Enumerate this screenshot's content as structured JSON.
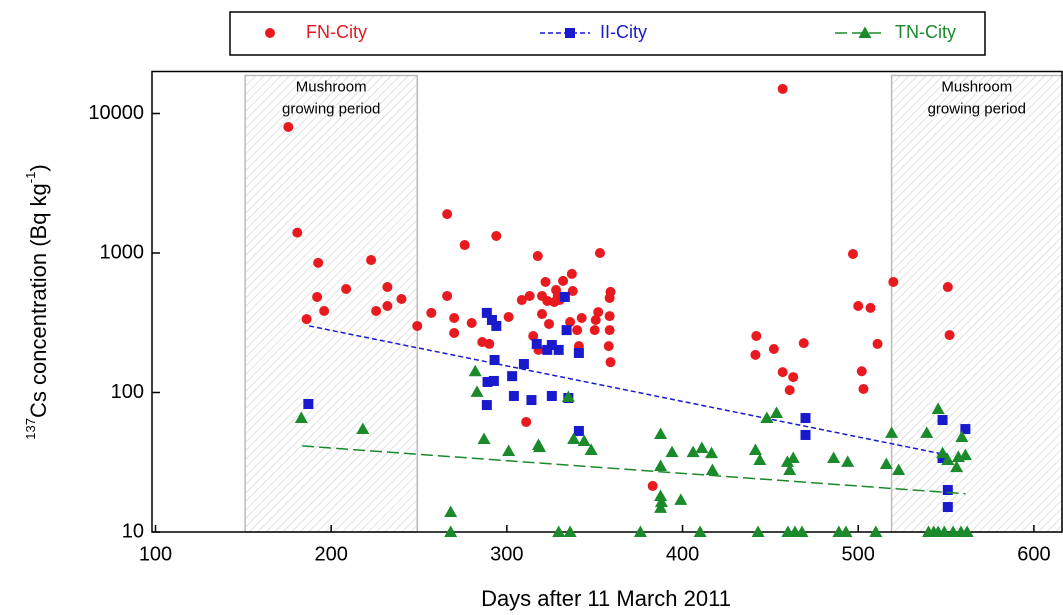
{
  "chart_data": {
    "type": "scatter",
    "x_label": "Days after 11 March 2011",
    "y_label": {
      "sup": "137",
      "text": "Cs concentration (Bq kg",
      "exp": "-1",
      "end": ")"
    },
    "xlim": [
      98,
      616
    ],
    "ylim": [
      10,
      20000
    ],
    "log_y": true,
    "xticks": [
      100,
      200,
      300,
      400,
      500,
      600
    ],
    "yticks": [
      10,
      100,
      1000,
      10000
    ],
    "regions": [
      {
        "x": [
          151,
          249
        ],
        "label": [
          "Mushroom",
          "growing period"
        ]
      },
      {
        "x": [
          519,
          616
        ],
        "label": [
          "Mushroom",
          "growing period"
        ]
      }
    ],
    "series": [
      {
        "name": "FN-City",
        "color": "#e8191f",
        "marker": "circle",
        "x": [
          175.6,
          180.7,
          186,
          192.6,
          192,
          196,
          208.5,
          222.7,
          225.6,
          232,
          232,
          240,
          249,
          257,
          266,
          266,
          270,
          270,
          276,
          280,
          286,
          290,
          294,
          301,
          308.5,
          311,
          313,
          315,
          317.6,
          318,
          320,
          320,
          322,
          323,
          324,
          327,
          328,
          329,
          330,
          332,
          336,
          337,
          337.5,
          340,
          341,
          342.6,
          350,
          350.6,
          352,
          353,
          358,
          358.5,
          359,
          358.5,
          358.5,
          359,
          383,
          442,
          441.5,
          452,
          457,
          457,
          463,
          461,
          469,
          497,
          500,
          502,
          503,
          507,
          511,
          520,
          551,
          552
        ],
        "y": [
          8000,
          1400,
          336,
          850,
          484,
          384,
          552,
          890,
          384,
          570,
          417,
          468,
          300,
          372,
          1900,
          492,
          342,
          267,
          1140,
          315,
          230,
          223,
          1325,
          348,
          460,
          61.5,
          492,
          254,
          951,
          202,
          492,
          365,
          620,
          453,
          310,
          445,
          543,
          492,
          460,
          631,
          320,
          708,
          534,
          280,
          215,
          342,
          280,
          331,
          377,
          1000,
          215,
          476,
          526,
          353,
          280,
          165,
          21.4,
          254,
          186,
          205,
          15000,
          140,
          129,
          104,
          226,
          984,
          417,
          142,
          106,
          404,
          223,
          620,
          570,
          258
        ]
      },
      {
        "name": "II-City",
        "color": "#1a1acd",
        "marker": "square",
        "x": [
          187,
          288.6,
          291.5,
          294,
          293,
          292.6,
          289,
          288.6,
          303,
          304,
          309.7,
          314,
          317,
          323,
          325.6,
          325.6,
          329.5,
          333,
          334,
          335,
          341,
          341,
          470,
          470,
          548,
          551,
          551,
          548,
          561
        ],
        "y": [
          82.7,
          372,
          331,
          300,
          171,
          121,
          119,
          81.3,
          131,
          94.4,
          160,
          88.3,
          223,
          202,
          219,
          94.4,
          202,
          484,
          280,
          91.3,
          192,
          53,
          65.6,
          49.6,
          63.5,
          20,
          15.1,
          33.9,
          54.7
        ],
        "trend": {
          "x": [
            187.5,
            551
          ],
          "y": [
            300,
            35.6
          ]
        }
      },
      {
        "name": "TN-City",
        "color": "#1a8a2a",
        "marker": "triangle",
        "x": [
          183,
          218,
          268,
          268,
          282,
          283,
          287,
          301,
          318,
          318.6,
          329.5,
          336,
          335,
          338,
          344,
          348,
          376,
          387.5,
          387.5,
          387.5,
          388,
          387.5,
          394,
          399,
          406,
          410,
          411,
          416.5,
          417,
          441.5,
          444,
          443,
          448,
          453.5,
          459.7,
          461,
          463,
          460,
          464,
          468,
          486,
          489,
          493,
          494,
          510,
          516,
          519,
          523,
          540,
          543,
          545.5,
          549,
          554,
          558.5,
          562,
          539,
          545.5,
          548,
          551,
          556,
          559,
          561,
          557
        ],
        "y": [
          65.6,
          54.7,
          13.9,
          10,
          142,
          101,
          46.4,
          38.1,
          42,
          40.6,
          10,
          10,
          92.9,
          46.4,
          44.9,
          38.7,
          10,
          50.4,
          29.7,
          18.1,
          16.4,
          14.9,
          37.4,
          17,
          37.4,
          10,
          40,
          36.8,
          27.8,
          38.7,
          32.8,
          10,
          65.6,
          71.3,
          31.8,
          27.8,
          33.9,
          10,
          10,
          10,
          33.9,
          10,
          10,
          31.8,
          10,
          30.7,
          51.3,
          27.8,
          10,
          10,
          10,
          10,
          10,
          10,
          10,
          51.3,
          76.2,
          36.8,
          32.8,
          29.2,
          48,
          35.6,
          34.5
        ],
        "trend": {
          "x": [
            183.5,
            561
          ],
          "y": [
            41.4,
            18.8
          ]
        }
      }
    ]
  }
}
